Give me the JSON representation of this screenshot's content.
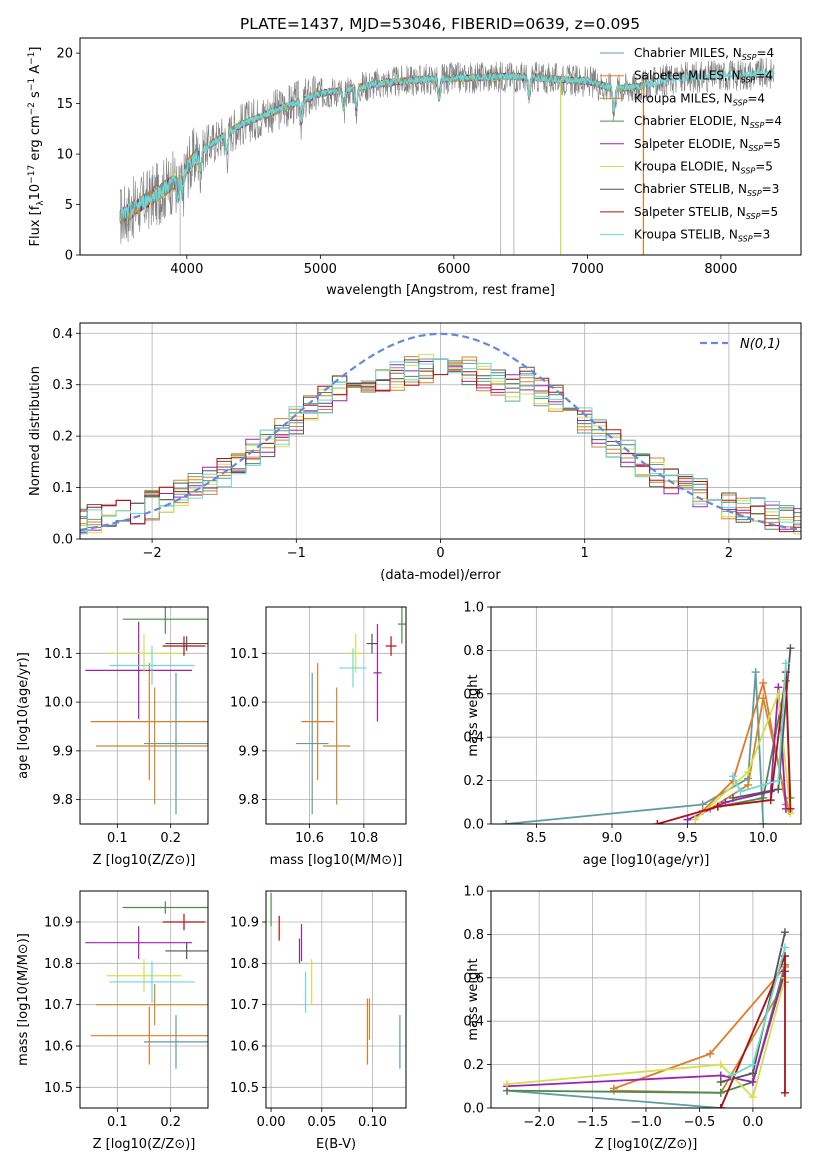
{
  "figure": {
    "title": "PLATE=1437, MJD=53046, FIBERID=0639, z=0.095"
  },
  "series_styles": [
    {
      "name": "Chabrier MILES, N_SSP=4",
      "label": "Chabrier MILES, N",
      "sub": "SSP",
      "tail": "=4",
      "color": "#5f9ea0"
    },
    {
      "name": "Salpeter MILES, N_SSP=4",
      "label": "Salpeter MILES, N",
      "sub": "SSP",
      "tail": "=4",
      "color": "#e07b2a"
    },
    {
      "name": "Kroupa MILES, N_SSP=4",
      "label": "Kroupa MILES, N",
      "sub": "SSP",
      "tail": "=4",
      "color": "#c98a2e"
    },
    {
      "name": "Chabrier ELODIE, N_SSP=4",
      "label": "Chabrier ELODIE, N",
      "sub": "SSP",
      "tail": "=4",
      "color": "#4e8a4e"
    },
    {
      "name": "Salpeter ELODIE, N_SSP=5",
      "label": "Salpeter ELODIE, N",
      "sub": "SSP",
      "tail": "=5",
      "color": "#a020b0"
    },
    {
      "name": "Kroupa ELODIE, N_SSP=5",
      "label": "Kroupa ELODIE, N",
      "sub": "SSP",
      "tail": "=5",
      "color": "#d4e04a"
    },
    {
      "name": "Chabrier STELIB, N_SSP=3",
      "label": "Chabrier STELIB, N",
      "sub": "SSP",
      "tail": "=3",
      "color": "#555555"
    },
    {
      "name": "Salpeter STELIB, N_SSP=5",
      "label": "Salpeter STELIB, N",
      "sub": "SSP",
      "tail": "=5",
      "color": "#b01010"
    },
    {
      "name": "Kroupa STELIB, N_SSP=3",
      "label": "Kroupa STELIB, N",
      "sub": "SSP",
      "tail": "=3",
      "color": "#6ed8d8"
    }
  ],
  "chart_data": [
    {
      "id": "spectrum",
      "type": "line",
      "title": "PLATE=1437, MJD=53046, FIBERID=0639, z=0.095",
      "xlabel": "wavelength [Angstrom, rest frame]",
      "ylabel": "Flux [f_λ 10^-17 erg cm^-2 s^-1 A^-1]",
      "ylabel_parts": {
        "a": "Flux [f",
        "a_sub": "λ",
        "b": "10",
        "b_sup": "−17",
        "c": " erg cm",
        "c_sup": "−2",
        "d": " s",
        "d_sup": "−1",
        "e": " A",
        "e_sup": "−1",
        "f": "]"
      },
      "xlim": [
        3200,
        8600
      ],
      "ylim": [
        0,
        21.5
      ],
      "xticks": [
        4000,
        5000,
        6000,
        7000,
        8000
      ],
      "yticks": [
        0,
        5,
        10,
        15,
        20
      ],
      "grid": false,
      "legend_position": "right",
      "model_continuum": {
        "x": [
          3500,
          3650,
          3800,
          3950,
          4100,
          4250,
          4400,
          4600,
          4800,
          5000,
          5200,
          5400,
          5600,
          5800,
          6000,
          6200,
          6400,
          6600,
          6800,
          7000,
          7200,
          7400,
          7600,
          7800,
          8000,
          8200,
          8400
        ],
        "y": [
          3.8,
          5.0,
          6.2,
          7.8,
          10.3,
          11.6,
          12.9,
          14.0,
          15.0,
          16.0,
          16.4,
          16.9,
          17.2,
          17.4,
          17.5,
          17.6,
          17.7,
          17.6,
          17.4,
          17.2,
          16.5,
          16.7,
          17.4,
          17.6,
          17.8,
          17.9,
          18.0
        ]
      },
      "absorption_features_A": [
        3934,
        3969,
        4102,
        4300,
        4861,
        5175,
        5270,
        5890,
        6563,
        7200
      ],
      "bad_pixel_spikes": [
        {
          "x": 3950,
          "y_low": 0
        },
        {
          "x": 6350,
          "y_low": 0
        },
        {
          "x": 6450,
          "y_low": 0
        },
        {
          "x": 6800,
          "y_low": 0
        },
        {
          "x": 7420,
          "y_low": 0
        }
      ]
    },
    {
      "id": "residuals",
      "type": "histogram",
      "xlabel": "(data-model)/error",
      "ylabel": "Normed distribution",
      "xlim": [
        -2.5,
        2.5
      ],
      "ylim": [
        0,
        0.42
      ],
      "xticks": [
        -2,
        -1,
        0,
        1,
        2
      ],
      "yticks": [
        0.0,
        0.1,
        0.2,
        0.3,
        0.4
      ],
      "grid": true,
      "legend_position": "top-right",
      "reference_curve": {
        "name": "N(0,1)",
        "color": "#6688dd",
        "style": "dashed"
      },
      "bin_width": 0.1,
      "bins_from": -2.5
    },
    {
      "id": "age-vs-Z",
      "type": "errorbar",
      "xlabel": "Z [log10(Z/Z⊙)]",
      "ylabel": "age [log10(age/yr)]",
      "xlim": [
        0.03,
        0.27
      ],
      "ylim": [
        9.75,
        10.195
      ],
      "xticks": [
        0.1,
        0.2
      ],
      "yticks": [
        9.8,
        9.9,
        10.0,
        10.1
      ],
      "grid": true,
      "points": [
        {
          "series": 0,
          "x": 0.21,
          "y": 9.915,
          "xerr": 0.06,
          "yerr": 0.145
        },
        {
          "series": 1,
          "x": 0.16,
          "y": 9.96,
          "xerr": 0.11,
          "yerr": 0.12
        },
        {
          "series": 3,
          "x": 0.19,
          "y": 10.17,
          "xerr": 0.08,
          "yerr": 0.03
        },
        {
          "series": 4,
          "x": 0.14,
          "y": 10.065,
          "xerr": 0.1,
          "yerr": 0.1
        },
        {
          "series": 5,
          "x": 0.15,
          "y": 10.1,
          "xerr": 0.07,
          "yerr": 0.04
        },
        {
          "series": 6,
          "x": 0.23,
          "y": 10.12,
          "xerr": 0.04,
          "yerr": 0.015
        },
        {
          "series": 7,
          "x": 0.225,
          "y": 10.115,
          "xerr": 0.04,
          "yerr": 0.02
        },
        {
          "series": 8,
          "x": 0.165,
          "y": 10.075,
          "xerr": 0.08,
          "yerr": 0.04
        },
        {
          "series": 2,
          "x": 0.17,
          "y": 9.91,
          "xerr": 0.11,
          "yerr": 0.12
        }
      ]
    },
    {
      "id": "age-vs-mass",
      "type": "errorbar",
      "xlabel": "mass [log10(M/M⊙)]",
      "ylabel": "",
      "xlim": [
        10.44,
        10.955
      ],
      "ylim": [
        9.75,
        10.195
      ],
      "xticks": [
        10.6,
        10.8
      ],
      "yticks": [
        9.8,
        9.9,
        10.0,
        10.1
      ],
      "grid": true,
      "points": [
        {
          "series": 0,
          "x": 10.61,
          "y": 9.915,
          "xerr": 0.06,
          "yerr": 0.145
        },
        {
          "series": 1,
          "x": 10.63,
          "y": 9.96,
          "xerr": 0.06,
          "yerr": 0.12
        },
        {
          "series": 2,
          "x": 10.7,
          "y": 9.91,
          "xerr": 0.05,
          "yerr": 0.12
        },
        {
          "series": 3,
          "x": 10.94,
          "y": 10.16,
          "xerr": 0.015,
          "yerr": 0.04
        },
        {
          "series": 4,
          "x": 10.85,
          "y": 10.06,
          "xerr": 0.015,
          "yerr": 0.1
        },
        {
          "series": 5,
          "x": 10.77,
          "y": 10.1,
          "xerr": 0.03,
          "yerr": 0.04
        },
        {
          "series": 6,
          "x": 10.83,
          "y": 10.12,
          "xerr": 0.02,
          "yerr": 0.02
        },
        {
          "series": 7,
          "x": 10.9,
          "y": 10.115,
          "xerr": 0.02,
          "yerr": 0.02
        },
        {
          "series": 8,
          "x": 10.76,
          "y": 10.07,
          "xerr": 0.05,
          "yerr": 0.04
        }
      ]
    },
    {
      "id": "massweight-vs-age",
      "type": "line",
      "xlabel": "age [log10(age/yr)]",
      "ylabel": "mass weight",
      "xlim": [
        8.2,
        10.25
      ],
      "ylim": [
        0,
        1.0
      ],
      "xticks": [
        8.5,
        9.0,
        9.5,
        10.0
      ],
      "yticks": [
        0.0,
        0.2,
        0.4,
        0.6,
        0.8,
        1.0
      ],
      "grid": true,
      "series": [
        {
          "series": 0,
          "x": [
            8.3,
            9.6,
            9.9,
            9.95,
            10.0
          ],
          "y": [
            0.0,
            0.09,
            0.21,
            0.7,
            0.0
          ]
        },
        {
          "series": 1,
          "x": [
            9.6,
            9.8,
            10.0,
            10.15
          ],
          "y": [
            0.06,
            0.2,
            0.65,
            0.09
          ]
        },
        {
          "series": 2,
          "x": [
            9.65,
            9.9,
            10.0,
            10.17
          ],
          "y": [
            0.07,
            0.18,
            0.58,
            0.06
          ]
        },
        {
          "series": 3,
          "x": [
            9.7,
            10.0,
            10.15,
            10.18
          ],
          "y": [
            0.08,
            0.12,
            0.66,
            0.12
          ]
        },
        {
          "series": 4,
          "x": [
            9.5,
            9.75,
            10.05,
            10.1,
            10.15
          ],
          "y": [
            0.02,
            0.1,
            0.15,
            0.63,
            0.07
          ]
        },
        {
          "series": 5,
          "x": [
            9.55,
            9.9,
            10.1,
            10.18
          ],
          "y": [
            0.02,
            0.24,
            0.6,
            0.05
          ]
        },
        {
          "series": 6,
          "x": [
            9.8,
            10.1,
            10.18
          ],
          "y": [
            0.12,
            0.16,
            0.81
          ]
        },
        {
          "series": 7,
          "x": [
            9.3,
            9.7,
            10.05,
            10.15,
            10.18
          ],
          "y": [
            0.0,
            0.08,
            0.11,
            0.7,
            0.07
          ]
        },
        {
          "series": 8,
          "x": [
            9.8,
            9.85,
            10.1,
            10.15
          ],
          "y": [
            0.22,
            0.15,
            0.2,
            0.74
          ]
        }
      ]
    },
    {
      "id": "mass-vs-Z",
      "type": "errorbar",
      "xlabel": "Z [log10(Z/Z⊙)]",
      "ylabel": "mass [log10(M/M⊙)]",
      "xlim": [
        0.03,
        0.27
      ],
      "ylim": [
        10.45,
        10.975
      ],
      "xticks": [
        0.1,
        0.2
      ],
      "yticks": [
        10.5,
        10.6,
        10.7,
        10.8,
        10.9
      ],
      "grid": true,
      "points": [
        {
          "series": 0,
          "x": 0.21,
          "y": 10.61,
          "xerr": 0.06,
          "yerr": 0.065
        },
        {
          "series": 1,
          "x": 0.16,
          "y": 10.625,
          "xerr": 0.11,
          "yerr": 0.07
        },
        {
          "series": 2,
          "x": 0.17,
          "y": 10.7,
          "xerr": 0.11,
          "yerr": 0.05
        },
        {
          "series": 3,
          "x": 0.19,
          "y": 10.935,
          "xerr": 0.08,
          "yerr": 0.015
        },
        {
          "series": 4,
          "x": 0.14,
          "y": 10.85,
          "xerr": 0.1,
          "yerr": 0.04
        },
        {
          "series": 5,
          "x": 0.15,
          "y": 10.77,
          "xerr": 0.07,
          "yerr": 0.04
        },
        {
          "series": 6,
          "x": 0.23,
          "y": 10.83,
          "xerr": 0.04,
          "yerr": 0.02
        },
        {
          "series": 7,
          "x": 0.225,
          "y": 10.9,
          "xerr": 0.04,
          "yerr": 0.02
        },
        {
          "series": 8,
          "x": 0.165,
          "y": 10.755,
          "xerr": 0.08,
          "yerr": 0.05
        }
      ]
    },
    {
      "id": "mass-vs-EBV",
      "type": "errorbar",
      "xlabel": "E(B-V)",
      "ylabel": "",
      "xlim": [
        -0.005,
        0.133
      ],
      "ylim": [
        10.45,
        10.975
      ],
      "xticks": [
        0.0,
        0.05,
        0.1
      ],
      "xticklabels": [
        "0.00",
        "0.05",
        "0.10"
      ],
      "yticks": [
        10.5,
        10.6,
        10.7,
        10.8,
        10.9
      ],
      "grid": true,
      "points": [
        {
          "series": 3,
          "x": 0.0,
          "y": 10.93,
          "xerr": 0.0,
          "yerr": 0.04
        },
        {
          "series": 7,
          "x": 0.008,
          "y": 10.885,
          "xerr": 0.0,
          "yerr": 0.03
        },
        {
          "series": 6,
          "x": 0.028,
          "y": 10.83,
          "xerr": 0.0,
          "yerr": 0.03
        },
        {
          "series": 4,
          "x": 0.03,
          "y": 10.85,
          "xerr": 0.0,
          "yerr": 0.045
        },
        {
          "series": 8,
          "x": 0.034,
          "y": 10.73,
          "xerr": 0.0,
          "yerr": 0.05
        },
        {
          "series": 5,
          "x": 0.04,
          "y": 10.755,
          "xerr": 0.0,
          "yerr": 0.055
        },
        {
          "series": 2,
          "x": 0.097,
          "y": 10.665,
          "xerr": 0.0,
          "yerr": 0.05
        },
        {
          "series": 1,
          "x": 0.095,
          "y": 10.635,
          "xerr": 0.0,
          "yerr": 0.08
        },
        {
          "series": 0,
          "x": 0.127,
          "y": 10.61,
          "xerr": 0.0,
          "yerr": 0.065
        }
      ]
    },
    {
      "id": "massweight-vs-Z",
      "type": "line",
      "xlabel": "Z [log10(Z/Z⊙)]",
      "ylabel": "mass weight",
      "xlim": [
        -2.45,
        0.45
      ],
      "ylim": [
        0,
        1.0
      ],
      "xticks": [
        -2.0,
        -1.5,
        -1.0,
        -0.5,
        0.0
      ],
      "yticks": [
        0.0,
        0.2,
        0.4,
        0.6,
        0.8,
        1.0
      ],
      "grid": true,
      "series": [
        {
          "series": 0,
          "x": [
            -2.3,
            -0.3,
            0.3
          ],
          "y": [
            0.08,
            0.0,
            0.7
          ]
        },
        {
          "series": 1,
          "x": [
            -1.3,
            -0.4,
            0.3
          ],
          "y": [
            0.09,
            0.25,
            0.65
          ]
        },
        {
          "series": 2,
          "x": [
            -1.3,
            -0.3,
            0.3
          ],
          "y": [
            0.08,
            0.07,
            0.58
          ]
        },
        {
          "series": 3,
          "x": [
            -2.3,
            -0.3,
            0.0,
            0.3
          ],
          "y": [
            0.08,
            0.07,
            0.12,
            0.66
          ]
        },
        {
          "series": 4,
          "x": [
            -2.3,
            -0.3,
            0.0,
            0.3
          ],
          "y": [
            0.1,
            0.15,
            0.12,
            0.63
          ]
        },
        {
          "series": 5,
          "x": [
            -2.3,
            -0.3,
            0.0,
            0.3
          ],
          "y": [
            0.11,
            0.2,
            0.05,
            0.6
          ]
        },
        {
          "series": 6,
          "x": [
            -0.3,
            0.0,
            0.3
          ],
          "y": [
            0.12,
            0.16,
            0.81
          ]
        },
        {
          "series": 7,
          "x": [
            -0.3,
            0.3,
            0.3
          ],
          "y": [
            0.0,
            0.7,
            0.07
          ]
        },
        {
          "series": 8,
          "x": [
            -0.2,
            0.0,
            0.3
          ],
          "y": [
            0.15,
            0.2,
            0.74
          ]
        }
      ]
    }
  ]
}
